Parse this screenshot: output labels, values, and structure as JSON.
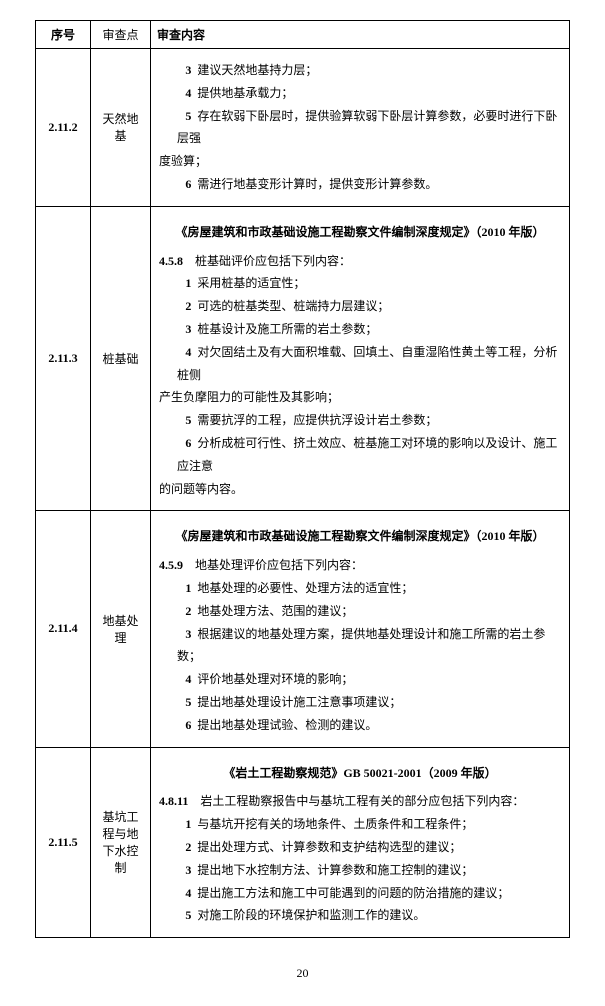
{
  "header": {
    "col1": "序号",
    "col2": "审查点",
    "col3": "审查内容"
  },
  "rows": [
    {
      "num": "2.11.2",
      "point": "天然地基",
      "title": "",
      "clause": "",
      "items": [
        {
          "n": "3",
          "t": "建议天然地基持力层；"
        },
        {
          "n": "4",
          "t": "提供地基承载力；"
        },
        {
          "n": "5",
          "t": "存在软弱下卧层时，提供验算软弱下卧层计算参数，必要时进行下卧层强"
        }
      ],
      "cont1": "度验算；",
      "items2": [
        {
          "n": "6",
          "t": "需进行地基变形计算时，提供变形计算参数。"
        }
      ]
    },
    {
      "num": "2.11.3",
      "point": "桩基础",
      "title": "《房屋建筑和市政基础设施工程勘察文件编制深度规定》（2010 年版）",
      "clause_num": "4.5.8",
      "clause_text": "桩基础评价应包括下列内容：",
      "items": [
        {
          "n": "1",
          "t": "采用桩基的适宜性；"
        },
        {
          "n": "2",
          "t": "可选的桩基类型、桩端持力层建议；"
        },
        {
          "n": "3",
          "t": "桩基设计及施工所需的岩土参数；"
        },
        {
          "n": "4",
          "t": "对欠固结土及有大面积堆载、回填土、自重湿陷性黄土等工程，分析桩侧"
        }
      ],
      "cont1": "产生负摩阻力的可能性及其影响；",
      "items2": [
        {
          "n": "5",
          "t": "需要抗浮的工程，应提供抗浮设计岩土参数；"
        },
        {
          "n": "6",
          "t": "分析成桩可行性、挤土效应、桩基施工对环境的影响以及设计、施工应注意"
        }
      ],
      "cont2": "的问题等内容。"
    },
    {
      "num": "2.11.4",
      "point": "地基处理",
      "title": "《房屋建筑和市政基础设施工程勘察文件编制深度规定》（2010 年版）",
      "clause_num": "4.5.9",
      "clause_text": "地基处理评价应包括下列内容：",
      "items": [
        {
          "n": "1",
          "t": "地基处理的必要性、处理方法的适宜性；"
        },
        {
          "n": "2",
          "t": "地基处理方法、范围的建议；"
        },
        {
          "n": "3",
          "t": "根据建议的地基处理方案，提供地基处理设计和施工所需的岩土参数；"
        },
        {
          "n": "4",
          "t": "评价地基处理对环境的影响；"
        },
        {
          "n": "5",
          "t": "提出地基处理设计施工注意事项建议；"
        },
        {
          "n": "6",
          "t": "提出地基处理试验、检测的建议。"
        }
      ]
    },
    {
      "num": "2.11.5",
      "point": "基坑工程与地下水控制",
      "title": "《岩土工程勘察规范》GB 50021-2001（2009 年版）",
      "clause_num": "4.8.11",
      "clause_text": "岩土工程勘察报告中与基坑工程有关的部分应包括下列内容：",
      "items": [
        {
          "n": "1",
          "t": "与基坑开挖有关的场地条件、土质条件和工程条件；"
        },
        {
          "n": "2",
          "t": "提出处理方式、计算参数和支护结构选型的建议；"
        },
        {
          "n": "3",
          "t": "提出地下水控制方法、计算参数和施工控制的建议；"
        },
        {
          "n": "4",
          "t": "提出施工方法和施工中可能遇到的问题的防治措施的建议；"
        },
        {
          "n": "5",
          "t": "对施工阶段的环境保护和监测工作的建议。"
        }
      ]
    }
  ],
  "page": "20"
}
